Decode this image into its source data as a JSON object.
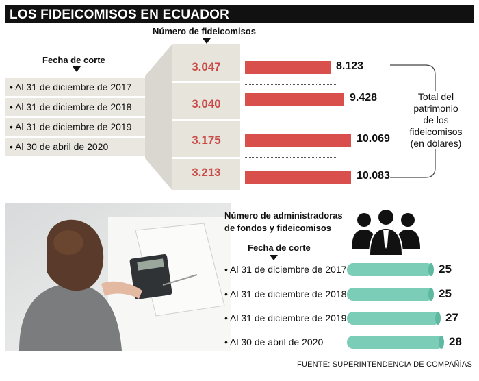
{
  "title": "LOS FIDEICOMISOS EN ECUADOR",
  "top": {
    "fecha_label": "Fecha de corte",
    "numero_label": "Número de fideicomisos",
    "patrimonio_label": [
      "Total del",
      "patrimonio",
      "de los",
      "fideicomisos",
      "(en dólares)"
    ]
  },
  "bottom": {
    "admin_label": [
      "Número de administradoras",
      "de fondos y fideicomisos"
    ],
    "fecha_label": "Fecha de corte"
  },
  "source": "FUENTE: SUPERINTENDENCIA DE COMPAÑÍAS",
  "colors": {
    "number_text": "#c94a46",
    "patrimonio_bar": "#d94f4c",
    "admin_bar": "#7ccdb8",
    "panel": "#e6e4db"
  },
  "chart_data": [
    {
      "type": "table",
      "categories": [
        "• Al 31 de diciembre de 2017",
        "• Al 31 de diciembre de 2018",
        "• Al 31 de diciembre de 2019",
        "• Al 30 de abril de 2020"
      ],
      "series": [
        {
          "name": "Número de fideicomisos",
          "values": [
            "3.047",
            "3.040",
            "3.175",
            "3.213"
          ]
        }
      ]
    },
    {
      "type": "bar",
      "categories": [
        "• Al 31 de diciembre de 2017",
        "• Al 31 de diciembre de 2018",
        "• Al 31 de diciembre de 2019",
        "• Al 30 de abril de 2020"
      ],
      "values": [
        8123,
        9428,
        10069,
        10083
      ],
      "labels": [
        "8.123",
        "9.428",
        "10.069",
        "10.083"
      ]
    },
    {
      "type": "bar",
      "categories": [
        "• Al 31 de diciembre de 2017",
        "• Al 31 de diciembre de 2018",
        "• Al 31 de diciembre de 2019",
        "• Al 30 de abril de 2020"
      ],
      "values": [
        25,
        25,
        27,
        28
      ],
      "labels": [
        "25",
        "25",
        "27",
        "28"
      ]
    }
  ]
}
